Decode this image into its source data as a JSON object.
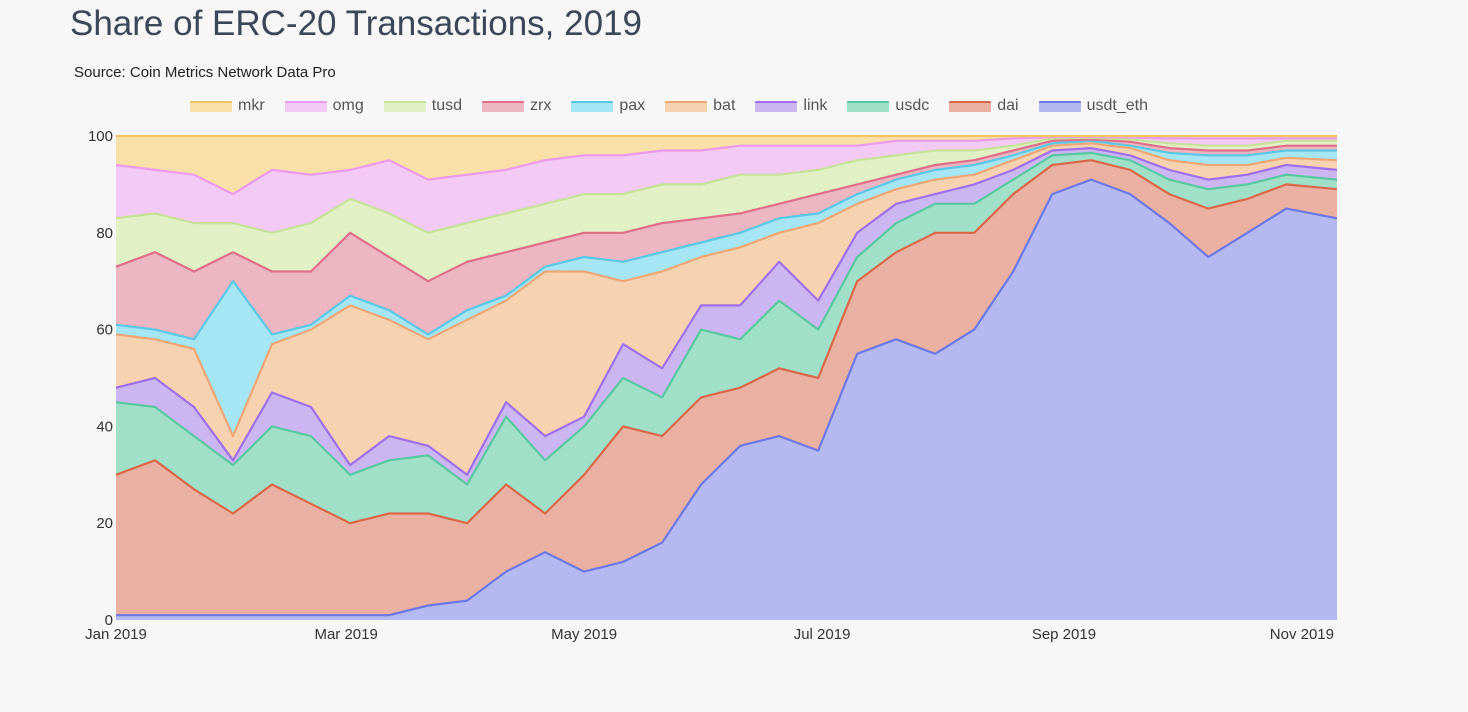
{
  "chart_data": {
    "type": "area",
    "stacked": true,
    "title": "Share of ERC-20 Transactions, 2019",
    "subtitle": "Source: Coin Metrics Network Data Pro",
    "xlabel": "",
    "ylabel": "",
    "ylim": [
      0,
      100
    ],
    "xlim": [
      "2019-01-01",
      "2019-11-10"
    ],
    "yticks": [
      0,
      20,
      40,
      60,
      80,
      100
    ],
    "xticks": [
      {
        "date": "2019-01-01",
        "label": "Jan 2019"
      },
      {
        "date": "2019-03-01",
        "label": "Mar 2019"
      },
      {
        "date": "2019-05-01",
        "label": "May 2019"
      },
      {
        "date": "2019-07-01",
        "label": "Jul 2019"
      },
      {
        "date": "2019-09-01",
        "label": "Sep 2019"
      },
      {
        "date": "2019-11-01",
        "label": "Nov 2019"
      }
    ],
    "legend_position": "top",
    "grid": false,
    "x": [
      "2019-01-01",
      "2019-01-11",
      "2019-01-21",
      "2019-01-31",
      "2019-02-10",
      "2019-02-20",
      "2019-03-02",
      "2019-03-12",
      "2019-03-22",
      "2019-04-01",
      "2019-04-11",
      "2019-04-21",
      "2019-05-01",
      "2019-05-11",
      "2019-05-21",
      "2019-05-31",
      "2019-06-10",
      "2019-06-20",
      "2019-06-30",
      "2019-07-10",
      "2019-07-20",
      "2019-07-30",
      "2019-08-09",
      "2019-08-19",
      "2019-08-29",
      "2019-09-08",
      "2019-09-18",
      "2019-09-28",
      "2019-10-08",
      "2019-10-18",
      "2019-10-28",
      "2019-11-07"
    ],
    "series": [
      {
        "name": "mkr",
        "fill": "#f9dfa8",
        "line": "#f0c566",
        "values": [
          6,
          7,
          8,
          12,
          7,
          8,
          7,
          5,
          9,
          8,
          7,
          5,
          4,
          4,
          3,
          3,
          2,
          2,
          2,
          2,
          1,
          1,
          1,
          0.5,
          0.2,
          0.2,
          0.3,
          0.5,
          0.5,
          0.5,
          0.5,
          0.5
        ]
      },
      {
        "name": "omg",
        "fill": "#f3c9f6",
        "line": "#e99be9",
        "values": [
          11,
          9,
          10,
          6,
          13,
          10,
          6,
          11,
          11,
          10,
          9,
          9,
          8,
          8,
          7,
          7,
          6,
          6,
          5,
          3,
          3,
          2,
          2,
          1.5,
          0.3,
          0.2,
          0.4,
          1,
          1.5,
          1.5,
          0.5,
          0.5
        ]
      },
      {
        "name": "tusd",
        "fill": "#e2f0c6",
        "line": "#c6e298",
        "values": [
          10,
          8,
          10,
          6,
          8,
          10,
          7,
          9,
          10,
          8,
          8,
          8,
          8,
          8,
          8,
          7,
          8,
          6,
          5,
          5,
          4,
          3,
          2,
          1,
          0.5,
          0.3,
          0.5,
          1,
          1,
          1,
          1,
          1
        ]
      },
      {
        "name": "zrx",
        "fill": "#eeb5c2",
        "line": "#df6f89",
        "values": [
          12,
          16,
          14,
          6,
          13,
          11,
          13,
          11,
          11,
          10,
          9,
          5,
          5,
          6,
          6,
          5,
          4,
          3,
          4,
          2,
          1,
          1,
          1,
          1,
          0.5,
          0.3,
          0.8,
          1,
          1,
          1,
          1,
          1
        ]
      },
      {
        "name": "pax",
        "fill": "#a6e5f3",
        "line": "#5cc7e4",
        "values": [
          2,
          2,
          2,
          32,
          2,
          1,
          2,
          2,
          1,
          2,
          1,
          1,
          3,
          4,
          4,
          3,
          3,
          3,
          2,
          2,
          2,
          2,
          2,
          1,
          0.5,
          0.5,
          0.5,
          1.5,
          2,
          2,
          1.5,
          2
        ]
      },
      {
        "name": "bat",
        "fill": "#f6d2b1",
        "line": "#efa676",
        "values": [
          11,
          8,
          12,
          5,
          10,
          16,
          33,
          24,
          22,
          32,
          21,
          34,
          30,
          13,
          20,
          10,
          12,
          6,
          16,
          6,
          3,
          3,
          2,
          2,
          1,
          1,
          1.5,
          2,
          3,
          2,
          1.5,
          2
        ]
      },
      {
        "name": "link",
        "fill": "#cbb6f2",
        "line": "#9f6fec",
        "values": [
          3,
          6,
          6,
          1,
          7,
          6,
          2,
          5,
          2,
          2,
          3,
          5,
          2,
          7,
          6,
          5,
          7,
          8,
          6,
          5,
          4,
          2,
          4,
          2,
          1,
          1,
          1,
          2,
          2,
          2,
          2,
          2
        ]
      },
      {
        "name": "usdc",
        "fill": "#a0e0c8",
        "line": "#59c79f",
        "values": [
          15,
          11,
          11,
          10,
          12,
          14,
          10,
          11,
          12,
          8,
          14,
          11,
          10,
          10,
          8,
          14,
          10,
          14,
          10,
          5,
          6,
          6,
          6,
          3,
          2,
          1.5,
          2,
          3,
          4,
          3,
          2,
          2
        ]
      },
      {
        "name": "dai",
        "fill": "#eab0a2",
        "line": "#d9684a",
        "values": [
          29,
          32,
          26,
          21,
          27,
          23,
          19,
          21,
          19,
          16,
          18,
          8,
          20,
          28,
          22,
          18,
          12,
          14,
          15,
          15,
          18,
          25,
          20,
          16,
          6,
          4,
          5,
          6,
          10,
          7,
          5,
          6
        ]
      },
      {
        "name": "usdt_eth",
        "fill": "#b4b9f2",
        "line": "#6e77e6",
        "values": [
          1,
          1,
          1,
          1,
          1,
          1,
          1,
          1,
          3,
          4,
          10,
          14,
          10,
          12,
          16,
          28,
          36,
          38,
          35,
          55,
          58,
          55,
          60,
          72,
          88,
          91,
          88,
          82,
          75,
          80,
          85,
          83
        ]
      }
    ]
  }
}
